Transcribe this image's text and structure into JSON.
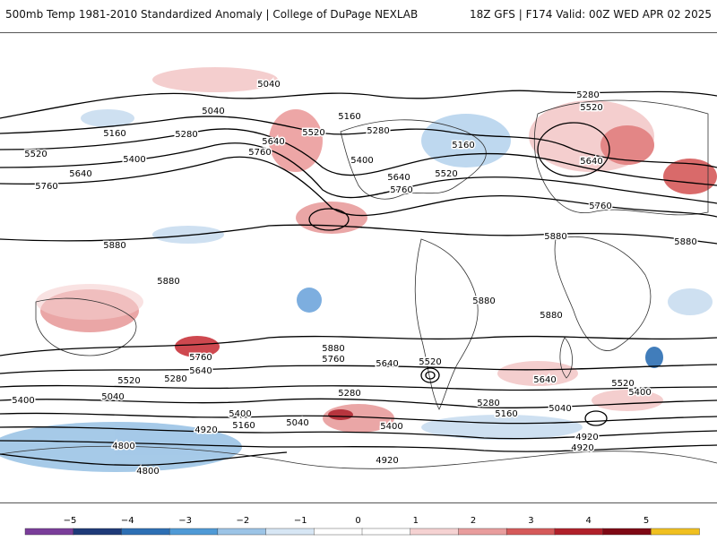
{
  "header": {
    "title_left": "500mb Temp 1981-2010 Standardized Anomaly | College of DuPage NEXLAB",
    "title_right": "18Z GFS | F174 Valid: 00Z WED APR 02 2025"
  },
  "contour_labels": [
    "5040",
    "5040",
    "5160",
    "5280",
    "5160",
    "5520",
    "5640",
    "5280",
    "5280",
    "5520",
    "5760",
    "5400",
    "5400",
    "5640",
    "5520",
    "5640",
    "5760",
    "5760",
    "5880",
    "5880",
    "5880",
    "5880",
    "5880",
    "5880",
    "5880",
    "5760",
    "5640",
    "5520",
    "5280",
    "5400",
    "5040",
    "5160",
    "5040",
    "5280",
    "5400",
    "5520",
    "5640",
    "5760",
    "5520",
    "5400",
    "4920",
    "4800",
    "4800",
    "4920",
    "4920",
    "4920",
    "5040",
    "5160",
    "5280",
    "5400",
    "5640",
    "5160",
    "5520",
    "5640",
    "5760"
  ],
  "colorbar": {
    "ticks": [
      "−5",
      "−4",
      "−3",
      "−2",
      "−1",
      "0",
      "1",
      "2",
      "3",
      "4",
      "5"
    ],
    "colors": [
      "#7a3d9a",
      "#1e3a78",
      "#2d6fb4",
      "#4f9ad6",
      "#9cc4e6",
      "#d7e6f4",
      "#ffffff",
      "#ffffff",
      "#f5d2d2",
      "#e89d9d",
      "#d55a5a",
      "#b0202a",
      "#7e0814",
      "#f0c020"
    ]
  }
}
